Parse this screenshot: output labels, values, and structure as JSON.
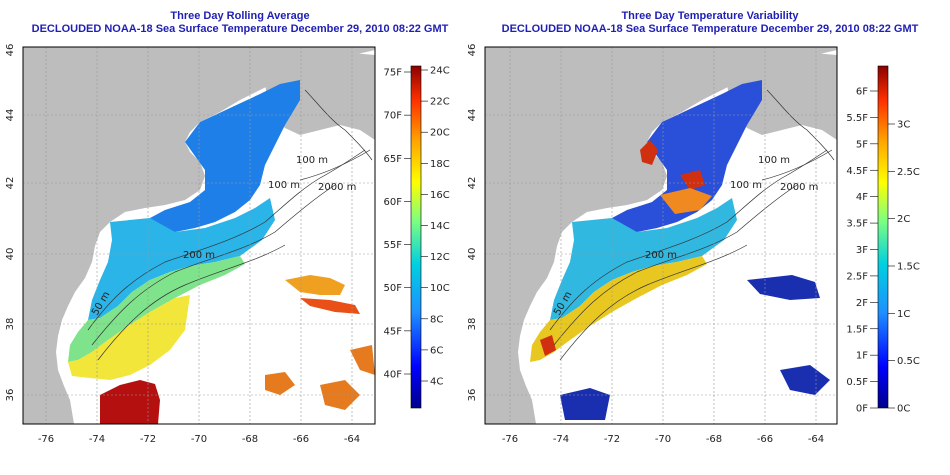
{
  "left_panel": {
    "title_line1": "Three Day Rolling Average",
    "title_line2": "DECLOUDED NOAA-18 Sea Surface Temperature December 29, 2010 08:22 GMT",
    "colorbar_f_labels": [
      "75F",
      "70F",
      "65F",
      "60F",
      "55F",
      "50F",
      "45F",
      "40F"
    ],
    "colorbar_c_labels": [
      "24C",
      "22C",
      "20C",
      "18C",
      "16C",
      "14C",
      "12C",
      "10C",
      "8C",
      "6C",
      "4C"
    ],
    "contour_labels": [
      "100 m",
      "2000 m",
      "100 m",
      "200 m",
      "50 m"
    ]
  },
  "right_panel": {
    "title_line1": "Three Day Temperature Variability",
    "title_line2": "DECLOUDED NOAA-18 Sea Surface Temperature December 29, 2010 08:22 GMT",
    "colorbar_f_labels": [
      "6F",
      "5.5F",
      "5F",
      "4.5F",
      "4F",
      "3.5F",
      "3F",
      "2.5F",
      "2F",
      "1.5F",
      "1F",
      "0.5F",
      "0F"
    ],
    "colorbar_c_labels": [
      "3C",
      "2.5C",
      "2C",
      "1.5C",
      "1C",
      "0.5C",
      "0C"
    ],
    "contour_labels": [
      "100 m",
      "2000 m",
      "100 m",
      "200 m",
      "50 m"
    ]
  },
  "axes": {
    "x_ticks": [
      "-76",
      "-74",
      "-72",
      "-70",
      "-68",
      "-66",
      "-64"
    ],
    "y_ticks": [
      "36",
      "38",
      "40",
      "42",
      "44",
      "46"
    ]
  },
  "colors": {
    "title": "#1f1fb4",
    "land": "#bdbdbd",
    "ocean_nodata": "#ffffff",
    "grid": "#999999"
  }
}
